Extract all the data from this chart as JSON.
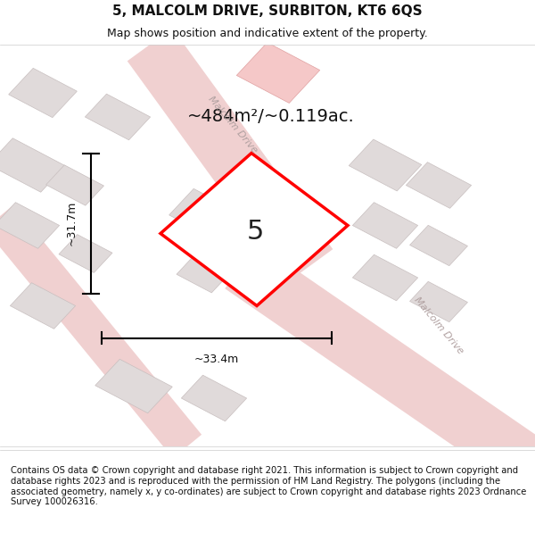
{
  "title": "5, MALCOLM DRIVE, SURBITON, KT6 6QS",
  "subtitle": "Map shows position and indicative extent of the property.",
  "area_text": "~484m²/~0.119ac.",
  "dim_width": "~33.4m",
  "dim_height": "~31.7m",
  "property_number": "5",
  "footer": "Contains OS data © Crown copyright and database right 2021. This information is subject to Crown copyright and database rights 2023 and is reproduced with the permission of HM Land Registry. The polygons (including the associated geometry, namely x, y co-ordinates) are subject to Crown copyright and database rights 2023 Ordnance Survey 100026316.",
  "map_bg": "#f7f2f2",
  "property_fill": "#ffffff",
  "property_edge": "#ff0000",
  "road_color_light": "#f0d0d0",
  "building_color": "#e0dada",
  "building_edge": "#c8bfbf",
  "highlight_color": "#f5c8c8",
  "highlight_edge": "#e0a0a0",
  "road_label_color": "#b0a0a0",
  "title_fontsize": 11,
  "subtitle_fontsize": 9,
  "footer_fontsize": 7.2
}
